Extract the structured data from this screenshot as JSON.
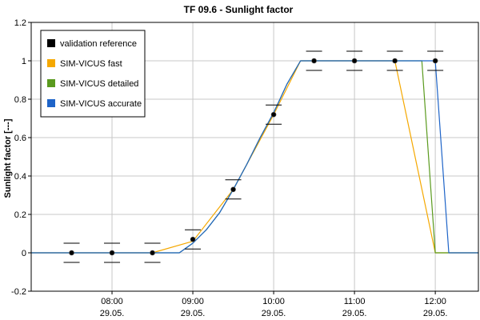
{
  "chart_data": {
    "type": "line",
    "title": "TF 09.6 - Sunlight factor",
    "ylabel": "Sunlight factor [---]",
    "xlabel": "",
    "ylim": [
      -0.2,
      1.2
    ],
    "yticks": [
      "-0.2",
      "0",
      "0.2",
      "0.4",
      "0.6",
      "0.8",
      "1",
      "1.2"
    ],
    "xlim": [
      "2021-05-29 07:00",
      "2021-05-29 12:32"
    ],
    "xticks": [
      {
        "x": "2021-05-29 08:00",
        "time": "08:00",
        "date": "29.05."
      },
      {
        "x": "2021-05-29 09:00",
        "time": "09:00",
        "date": "29.05."
      },
      {
        "x": "2021-05-29 10:00",
        "time": "10:00",
        "date": "29.05."
      },
      {
        "x": "2021-05-29 11:00",
        "time": "11:00",
        "date": "29.05."
      },
      {
        "x": "2021-05-29 12:00",
        "time": "12:00",
        "date": "29.05."
      }
    ],
    "grid": true,
    "legend_position": "top-left",
    "reference": {
      "name": "validation reference",
      "color": "#000000",
      "points": [
        {
          "x": "2021-05-29 07:30",
          "y": 0.0,
          "lo": -0.05,
          "hi": 0.05
        },
        {
          "x": "2021-05-29 08:00",
          "y": 0.0,
          "lo": -0.05,
          "hi": 0.05
        },
        {
          "x": "2021-05-29 08:30",
          "y": 0.0,
          "lo": -0.05,
          "hi": 0.05
        },
        {
          "x": "2021-05-29 09:00",
          "y": 0.07,
          "lo": 0.02,
          "hi": 0.12
        },
        {
          "x": "2021-05-29 09:30",
          "y": 0.33,
          "lo": 0.28,
          "hi": 0.38
        },
        {
          "x": "2021-05-29 10:00",
          "y": 0.72,
          "lo": 0.67,
          "hi": 0.77
        },
        {
          "x": "2021-05-29 10:30",
          "y": 1.0,
          "lo": 0.95,
          "hi": 1.05
        },
        {
          "x": "2021-05-29 11:00",
          "y": 1.0,
          "lo": 0.95,
          "hi": 1.05
        },
        {
          "x": "2021-05-29 11:30",
          "y": 1.0,
          "lo": 0.95,
          "hi": 1.05
        },
        {
          "x": "2021-05-29 12:00",
          "y": 1.0,
          "lo": 0.95,
          "hi": 1.05
        }
      ]
    },
    "series": [
      {
        "name": "SIM-VICUS fast",
        "color": "#f5a800",
        "x": [
          "2021-05-29 07:00",
          "2021-05-29 08:30",
          "2021-05-29 09:00",
          "2021-05-29 09:30",
          "2021-05-29 10:00",
          "2021-05-29 10:20",
          "2021-05-29 11:30",
          "2021-05-29 12:00",
          "2021-05-29 12:32"
        ],
        "y": [
          0,
          0,
          0.06,
          0.33,
          0.72,
          1.0,
          1.0,
          0,
          0
        ]
      },
      {
        "name": "SIM-VICUS detailed",
        "color": "#5a9a1e",
        "x": [
          "2021-05-29 07:00",
          "2021-05-29 08:50",
          "2021-05-29 09:00",
          "2021-05-29 09:10",
          "2021-05-29 09:20",
          "2021-05-29 09:30",
          "2021-05-29 09:40",
          "2021-05-29 09:50",
          "2021-05-29 10:00",
          "2021-05-29 10:10",
          "2021-05-29 10:20",
          "2021-05-29 11:50",
          "2021-05-29 12:00",
          "2021-05-29 12:32"
        ],
        "y": [
          0,
          0,
          0.05,
          0.12,
          0.21,
          0.33,
          0.46,
          0.6,
          0.73,
          0.88,
          1.0,
          1.0,
          0,
          0
        ]
      },
      {
        "name": "SIM-VICUS accurate",
        "color": "#1e64c8",
        "x": [
          "2021-05-29 07:00",
          "2021-05-29 08:50",
          "2021-05-29 09:00",
          "2021-05-29 09:10",
          "2021-05-29 09:20",
          "2021-05-29 09:30",
          "2021-05-29 09:40",
          "2021-05-29 09:50",
          "2021-05-29 10:00",
          "2021-05-29 10:10",
          "2021-05-29 10:20",
          "2021-05-29 12:00",
          "2021-05-29 12:10",
          "2021-05-29 12:32"
        ],
        "y": [
          0,
          0,
          0.05,
          0.12,
          0.21,
          0.33,
          0.46,
          0.6,
          0.73,
          0.88,
          1.0,
          1.0,
          0,
          0
        ]
      }
    ]
  }
}
